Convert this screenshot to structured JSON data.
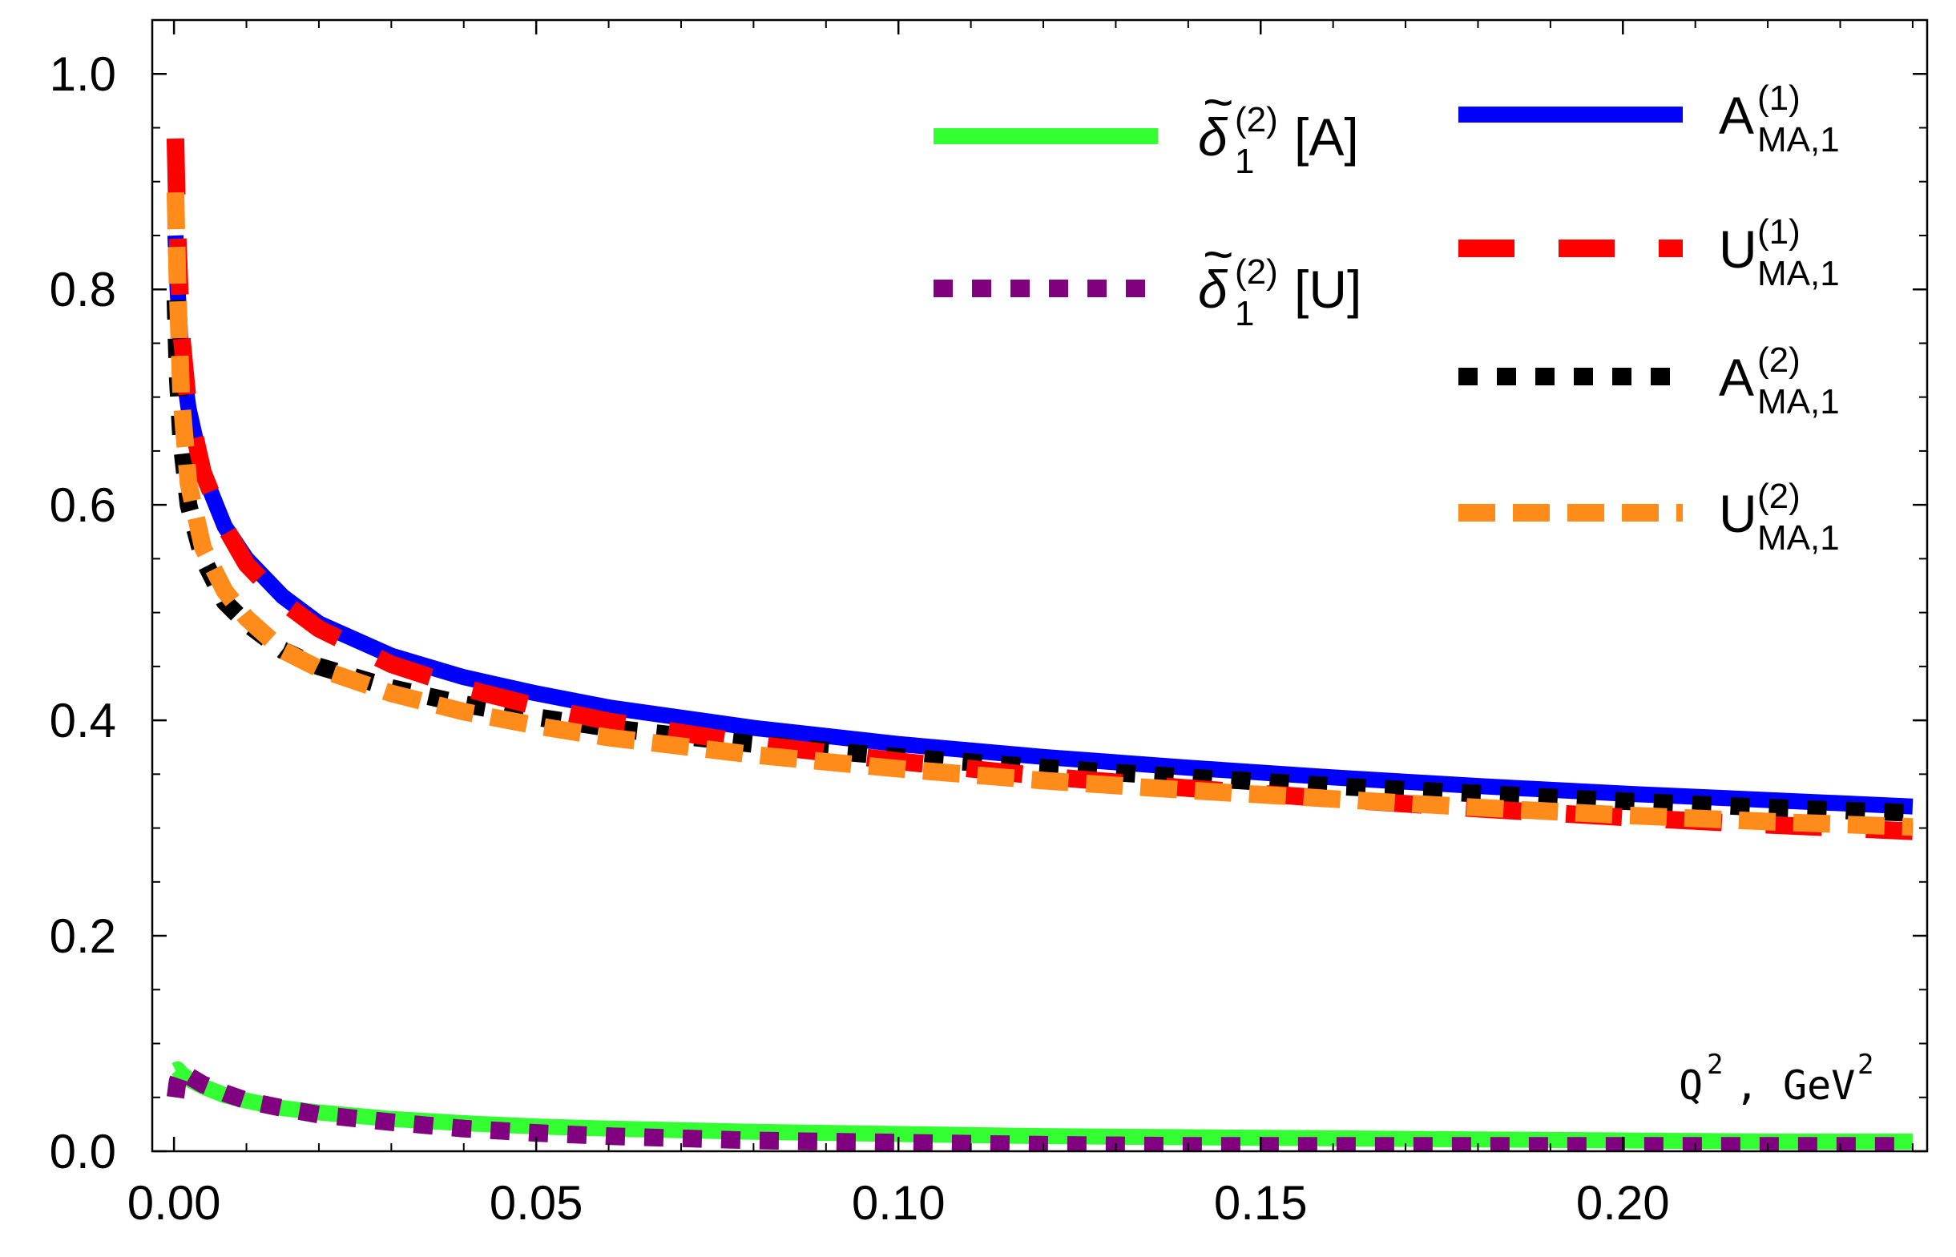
{
  "chart_data": {
    "type": "line",
    "title": "",
    "xlabel": "Q², GeV²",
    "xlabel_parts": {
      "var": "Q",
      "sup": "2",
      "sep": ",",
      "unit": "GeV",
      "unit_sup": "2"
    },
    "ylabel": "",
    "xlim": [
      -0.003,
      0.242
    ],
    "ylim": [
      0.0,
      1.05
    ],
    "xticks": [
      0.0,
      0.05,
      0.1,
      0.15,
      0.2
    ],
    "xtick_labels": [
      "0.00",
      "0.05",
      "0.10",
      "0.15",
      "0.20"
    ],
    "yticks": [
      0.0,
      0.2,
      0.4,
      0.6,
      0.8,
      1.0
    ],
    "ytick_labels": [
      "0.0",
      "0.2",
      "0.4",
      "0.6",
      "0.8",
      "1.0"
    ],
    "grid": false,
    "legend_position": "top-right",
    "x": [
      0.0002,
      0.0005,
      0.001,
      0.002,
      0.004,
      0.007,
      0.01,
      0.015,
      0.02,
      0.03,
      0.04,
      0.05,
      0.06,
      0.08,
      0.1,
      0.12,
      0.14,
      0.16,
      0.18,
      0.2,
      0.22,
      0.24
    ],
    "series": [
      {
        "name": "A_MA,1^(1)",
        "label": {
          "base": "A",
          "sup": "(1)",
          "sub": "MA,1",
          "tilde": false,
          "bracket": ""
        },
        "color": "#0000ff",
        "dash": "solid",
        "values": [
          0.85,
          0.8,
          0.74,
          0.69,
          0.63,
          0.58,
          0.55,
          0.515,
          0.49,
          0.46,
          0.44,
          0.425,
          0.412,
          0.393,
          0.378,
          0.366,
          0.356,
          0.347,
          0.339,
          0.332,
          0.326,
          0.32
        ]
      },
      {
        "name": "U_MA,1^(1)",
        "label": {
          "base": "U",
          "sup": "(1)",
          "sub": "MA,1",
          "tilde": false,
          "bracket": ""
        },
        "color": "#ff0000",
        "dash": "long-dash",
        "values": [
          0.94,
          0.85,
          0.76,
          0.69,
          0.63,
          0.58,
          0.545,
          0.51,
          0.485,
          0.452,
          0.43,
          0.413,
          0.399,
          0.378,
          0.362,
          0.348,
          0.337,
          0.327,
          0.318,
          0.31,
          0.303,
          0.297
        ]
      },
      {
        "name": "A_MA,1^(2)",
        "label": {
          "base": "A",
          "sup": "(2)",
          "sub": "MA,1",
          "tilde": false,
          "bracket": ""
        },
        "color": "#000000",
        "dash": "dotted",
        "values": [
          0.79,
          0.72,
          0.66,
          0.6,
          0.55,
          0.51,
          0.49,
          0.465,
          0.45,
          0.43,
          0.415,
          0.403,
          0.393,
          0.378,
          0.366,
          0.356,
          0.347,
          0.339,
          0.332,
          0.325,
          0.319,
          0.314
        ]
      },
      {
        "name": "U_MA,1^(2)",
        "label": {
          "base": "U",
          "sup": "(2)",
          "sub": "MA,1",
          "tilde": false,
          "bracket": ""
        },
        "color": "#ff8c1a",
        "dash": "dashed",
        "values": [
          0.89,
          0.8,
          0.7,
          0.62,
          0.56,
          0.52,
          0.495,
          0.465,
          0.448,
          0.425,
          0.408,
          0.395,
          0.384,
          0.368,
          0.355,
          0.344,
          0.335,
          0.327,
          0.319,
          0.312,
          0.306,
          0.301
        ]
      },
      {
        "name": "δ̃_1^(2)[A]",
        "label": {
          "base": "δ",
          "sup": "(2)",
          "sub": "1",
          "tilde": true,
          "bracket": "[A]"
        },
        "color": "#33ff33",
        "dash": "solid",
        "values": [
          0.075,
          0.076,
          0.072,
          0.067,
          0.06,
          0.052,
          0.047,
          0.04,
          0.036,
          0.03,
          0.026,
          0.023,
          0.021,
          0.018,
          0.016,
          0.014,
          0.013,
          0.012,
          0.011,
          0.01,
          0.009,
          0.009
        ]
      },
      {
        "name": "δ̃_1^(2)[U]",
        "label": {
          "base": "δ",
          "sup": "(2)",
          "sub": "1",
          "tilde": true,
          "bracket": "[U]"
        },
        "color": "#800080",
        "dash": "dotted",
        "values": [
          0.05,
          0.065,
          0.075,
          0.07,
          0.062,
          0.054,
          0.047,
          0.04,
          0.034,
          0.027,
          0.021,
          0.017,
          0.014,
          0.01,
          0.008,
          0.006,
          0.005,
          0.005,
          0.005,
          0.005,
          0.005,
          0.005
        ]
      }
    ]
  }
}
